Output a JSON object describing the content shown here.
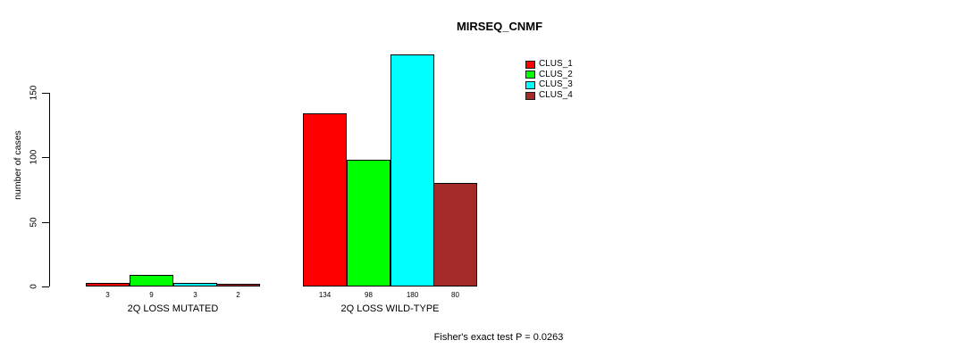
{
  "title": "MIRSEQ_CNMF",
  "ylabel": "number of cases",
  "footer": "Fisher's exact test P = 0.0263",
  "colors": {
    "axis": "#000000",
    "text": "#000000",
    "background": "#ffffff"
  },
  "chart_data": {
    "type": "bar",
    "title": "MIRSEQ_CNMF",
    "xlabel": "",
    "ylabel": "number of cases",
    "categories": [
      "2Q LOSS MUTATED",
      "2Q LOSS WILD-TYPE"
    ],
    "series": [
      {
        "name": "CLUS_1",
        "color": "#ff0000",
        "values": [
          3,
          134
        ]
      },
      {
        "name": "CLUS_2",
        "color": "#00ff00",
        "values": [
          9,
          98
        ]
      },
      {
        "name": "CLUS_3",
        "color": "#00ffff",
        "values": [
          3,
          180
        ]
      },
      {
        "name": "CLUS_4",
        "color": "#a52a2a",
        "values": [
          2,
          80
        ]
      }
    ],
    "bar_value_labels": [
      [
        "3",
        "9",
        "3",
        "2"
      ],
      [
        "134",
        "98",
        "180",
        "80"
      ]
    ],
    "yticks": [
      0,
      50,
      100,
      150
    ],
    "ylim": [
      0,
      186
    ],
    "grid": false,
    "legend_position": "top-right",
    "annotation": "Fisher's exact test P = 0.0263"
  }
}
